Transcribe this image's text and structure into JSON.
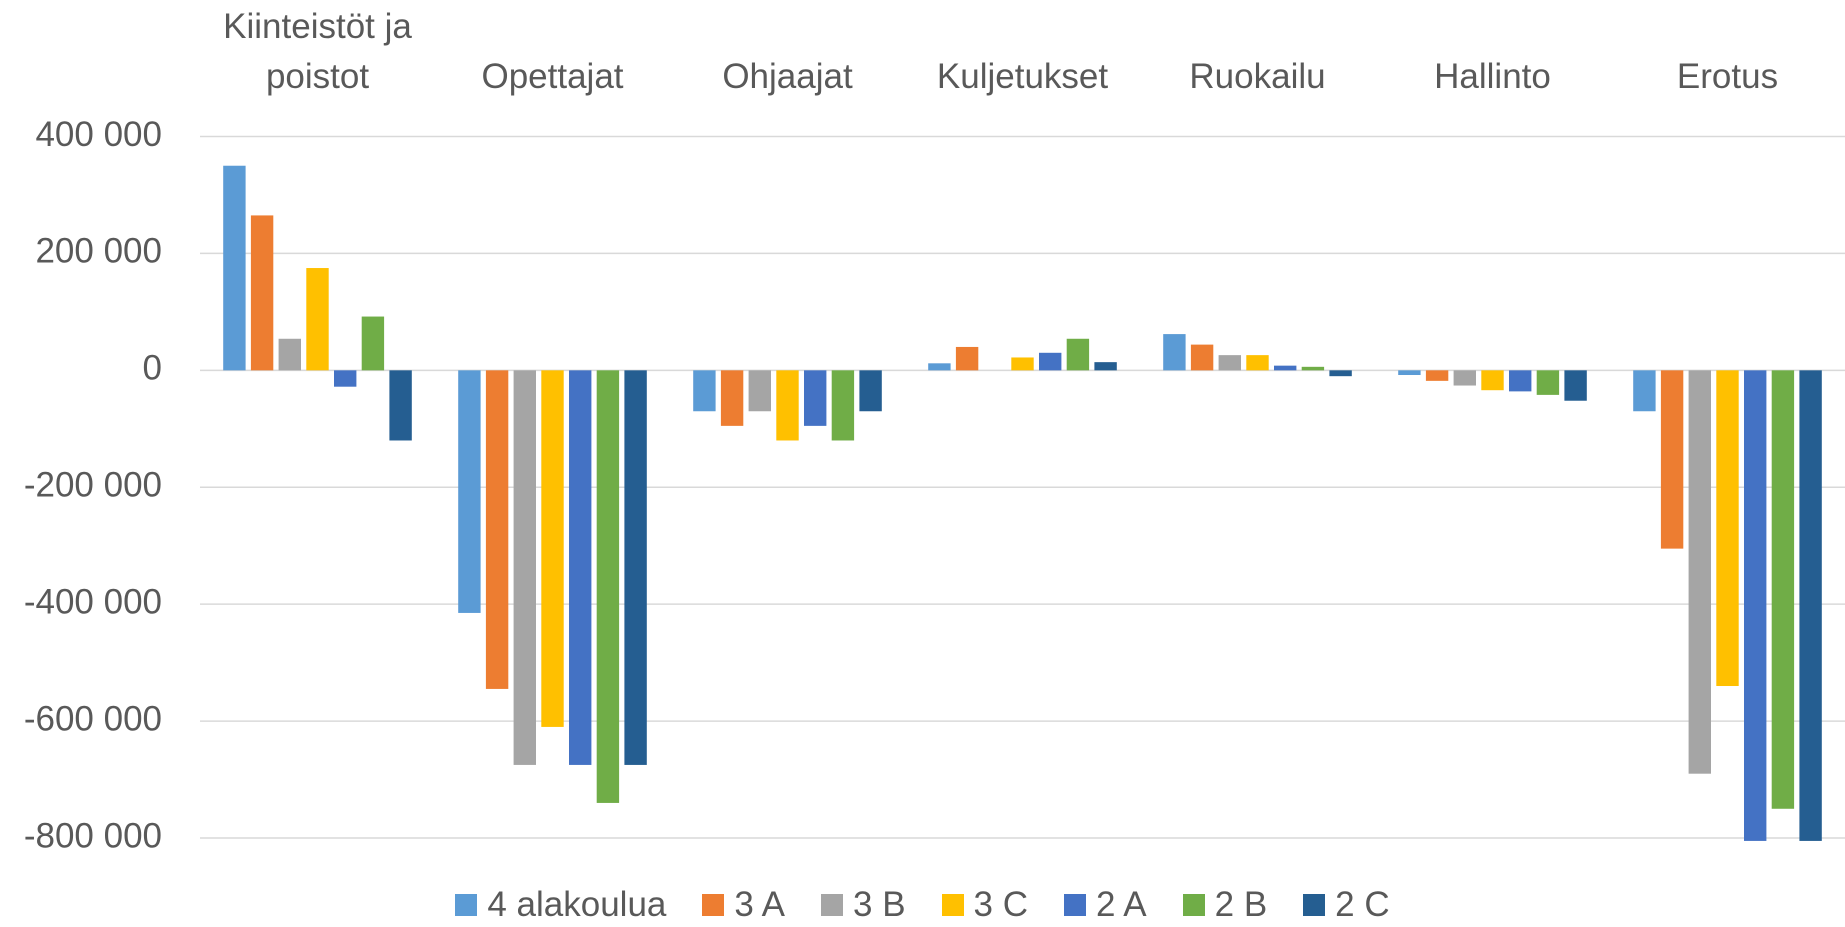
{
  "chart_data": {
    "type": "bar",
    "categories": [
      "Kiinteistöt ja poistot",
      "Opettajat",
      "Ohjaajat",
      "Kuljetukset",
      "Ruokailu",
      "Hallinto",
      "Erotus"
    ],
    "series": [
      {
        "name": "4 alakoulua",
        "color": "#5b9bd5",
        "values": [
          350000,
          -415000,
          -70000,
          12000,
          62000,
          -8000,
          -70000
        ]
      },
      {
        "name": "3 A",
        "color": "#ed7d31",
        "values": [
          265000,
          -545000,
          -95000,
          40000,
          44000,
          -18000,
          -305000
        ]
      },
      {
        "name": "3 B",
        "color": "#a5a5a5",
        "values": [
          54000,
          -675000,
          -70000,
          0,
          26000,
          -26000,
          -690000
        ]
      },
      {
        "name": "3 C",
        "color": "#ffc000",
        "values": [
          175000,
          -610000,
          -120000,
          22000,
          26000,
          -34000,
          -540000
        ]
      },
      {
        "name": "2 A",
        "color": "#4472c4",
        "values": [
          -28000,
          -675000,
          -95000,
          30000,
          8000,
          -36000,
          -805000
        ]
      },
      {
        "name": "2 B",
        "color": "#70ad47",
        "values": [
          92000,
          -740000,
          -120000,
          54000,
          6000,
          -42000,
          -750000
        ]
      },
      {
        "name": "2 C",
        "color": "#255e91",
        "values": [
          -120000,
          -675000,
          -70000,
          14000,
          -10000,
          -52000,
          -805000
        ]
      }
    ],
    "ylim": [
      -800000,
      400000
    ],
    "yticks": [
      {
        "value": 400000,
        "label": "400 000"
      },
      {
        "value": 200000,
        "label": "200 000"
      },
      0,
      {
        "value": -200000,
        "label": "-200 000"
      },
      {
        "value": -400000,
        "label": "-400 000"
      },
      {
        "value": -600000,
        "label": "-600 000"
      },
      {
        "value": -800000,
        "label": "-800 000"
      }
    ],
    "grid": true,
    "legend": "bottom"
  }
}
